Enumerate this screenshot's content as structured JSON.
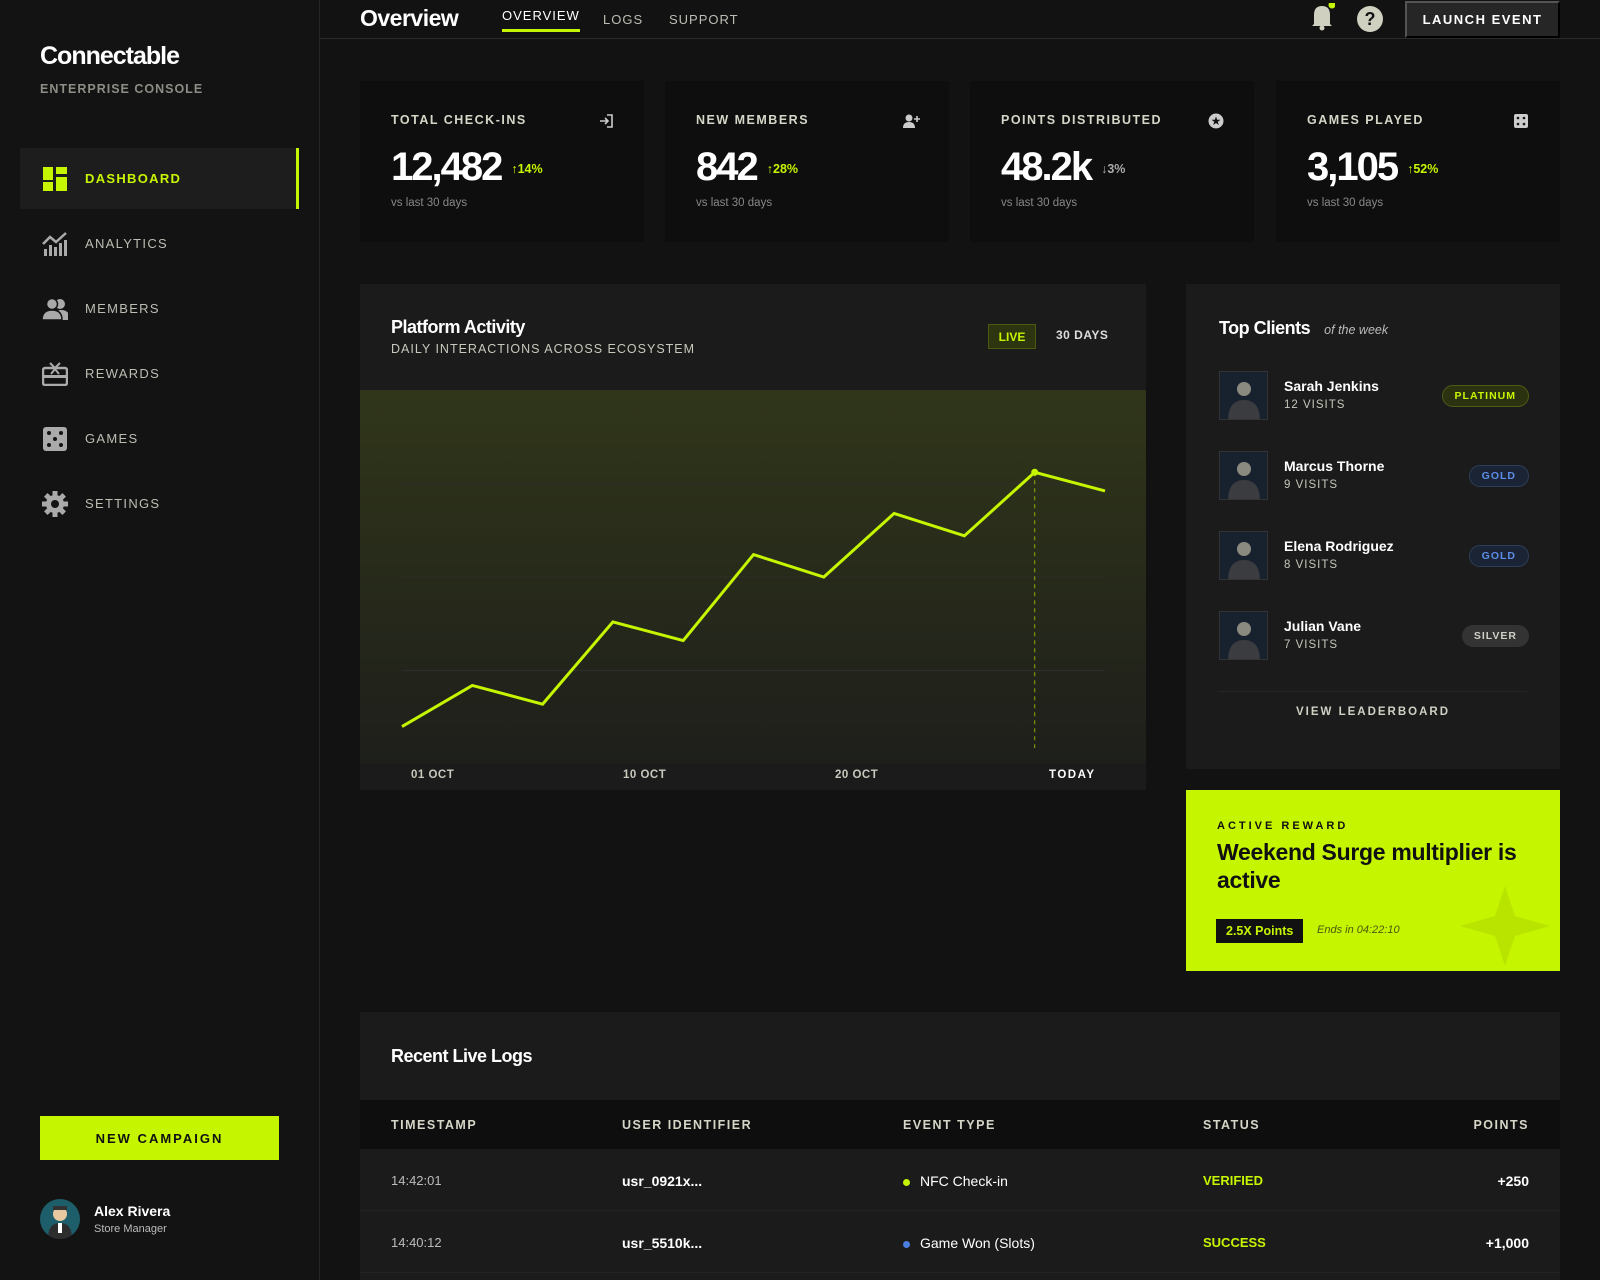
{
  "brand": {
    "name": "Connectable",
    "subtitle": "ENTERPRISE CONSOLE"
  },
  "sidebar": {
    "items": [
      {
        "label": "DASHBOARD",
        "icon": "dashboard-icon",
        "active": true
      },
      {
        "label": "ANALYTICS",
        "icon": "analytics-icon"
      },
      {
        "label": "MEMBERS",
        "icon": "members-icon"
      },
      {
        "label": "REWARDS",
        "icon": "rewards-icon"
      },
      {
        "label": "GAMES",
        "icon": "dice-icon"
      },
      {
        "label": "SETTINGS",
        "icon": "gear-icon"
      }
    ],
    "new_campaign": "NEW CAMPAIGN",
    "user": {
      "name": "Alex Rivera",
      "role": "Store Manager"
    }
  },
  "header": {
    "title": "Overview",
    "tabs": [
      "OVERVIEW",
      "LOGS",
      "SUPPORT"
    ],
    "active_tab": "OVERVIEW",
    "launch": "LAUNCH EVENT",
    "notification_dot": true
  },
  "accent": "#c6f500",
  "stats": [
    {
      "label": "TOTAL CHECK-INS",
      "value": "12,482",
      "change": "14%",
      "direction": "up",
      "sub": "vs last 30 days",
      "icon": "login-icon"
    },
    {
      "label": "NEW MEMBERS",
      "value": "842",
      "change": "28%",
      "direction": "up",
      "sub": "vs last 30 days",
      "icon": "add-user-icon"
    },
    {
      "label": "POINTS DISTRIBUTED",
      "value": "48.2k",
      "change": "3%",
      "direction": "down",
      "sub": "vs last 30 days",
      "icon": "star-coin-icon"
    },
    {
      "label": "GAMES PLAYED",
      "value": "3,105",
      "change": "52%",
      "direction": "up",
      "sub": "vs last 30 days",
      "icon": "dice-icon"
    }
  ],
  "activity": {
    "title": "Platform Activity",
    "subtitle": "DAILY INTERACTIONS ACROSS ECOSYSTEM",
    "live": "LIVE",
    "range": "30 DAYS"
  },
  "chart_data": {
    "type": "line",
    "title": "Platform Activity",
    "subtitle": "DAILY INTERACTIONS ACROSS ECOSYSTEM",
    "x_ticks": [
      "01 OCT",
      "10 OCT",
      "20 OCT",
      "TODAY"
    ],
    "values": [
      10,
      21,
      16,
      38,
      33,
      56,
      50,
      67,
      61,
      78,
      73
    ],
    "highlight_index": 9,
    "ylim": [
      0,
      100
    ],
    "grid": true
  },
  "top_clients": {
    "title": "Top Clients",
    "subtitle": "of the week",
    "view_all": "VIEW LEADERBOARD",
    "clients": [
      {
        "name": "Sarah Jenkins",
        "visits": "12 VISITS",
        "tier": "PLATINUM"
      },
      {
        "name": "Marcus Thorne",
        "visits": "9 VISITS",
        "tier": "GOLD"
      },
      {
        "name": "Elena Rodriguez",
        "visits": "8 VISITS",
        "tier": "GOLD"
      },
      {
        "name": "Julian Vane",
        "visits": "7 VISITS",
        "tier": "SILVER"
      }
    ]
  },
  "reward": {
    "kicker": "ACTIVE REWARD",
    "title": "Weekend Surge multiplier is active",
    "points": "2.5X Points",
    "ends": "Ends in 04:22:10"
  },
  "logs": {
    "title": "Recent Live Logs",
    "columns": [
      "TIMESTAMP",
      "USER IDENTIFIER",
      "EVENT TYPE",
      "STATUS",
      "POINTS"
    ],
    "rows": [
      {
        "time": "14:42:01",
        "user": "usr_0921x...",
        "event": "NFC Check-in",
        "event_color": "#c6f500",
        "status": "VERIFIED",
        "points": "+250"
      },
      {
        "time": "14:40:12",
        "user": "usr_5510k...",
        "event": "Game Won (Slots)",
        "event_color": "#4a7fe0",
        "status": "SUCCESS",
        "points": "+1,000"
      }
    ]
  }
}
